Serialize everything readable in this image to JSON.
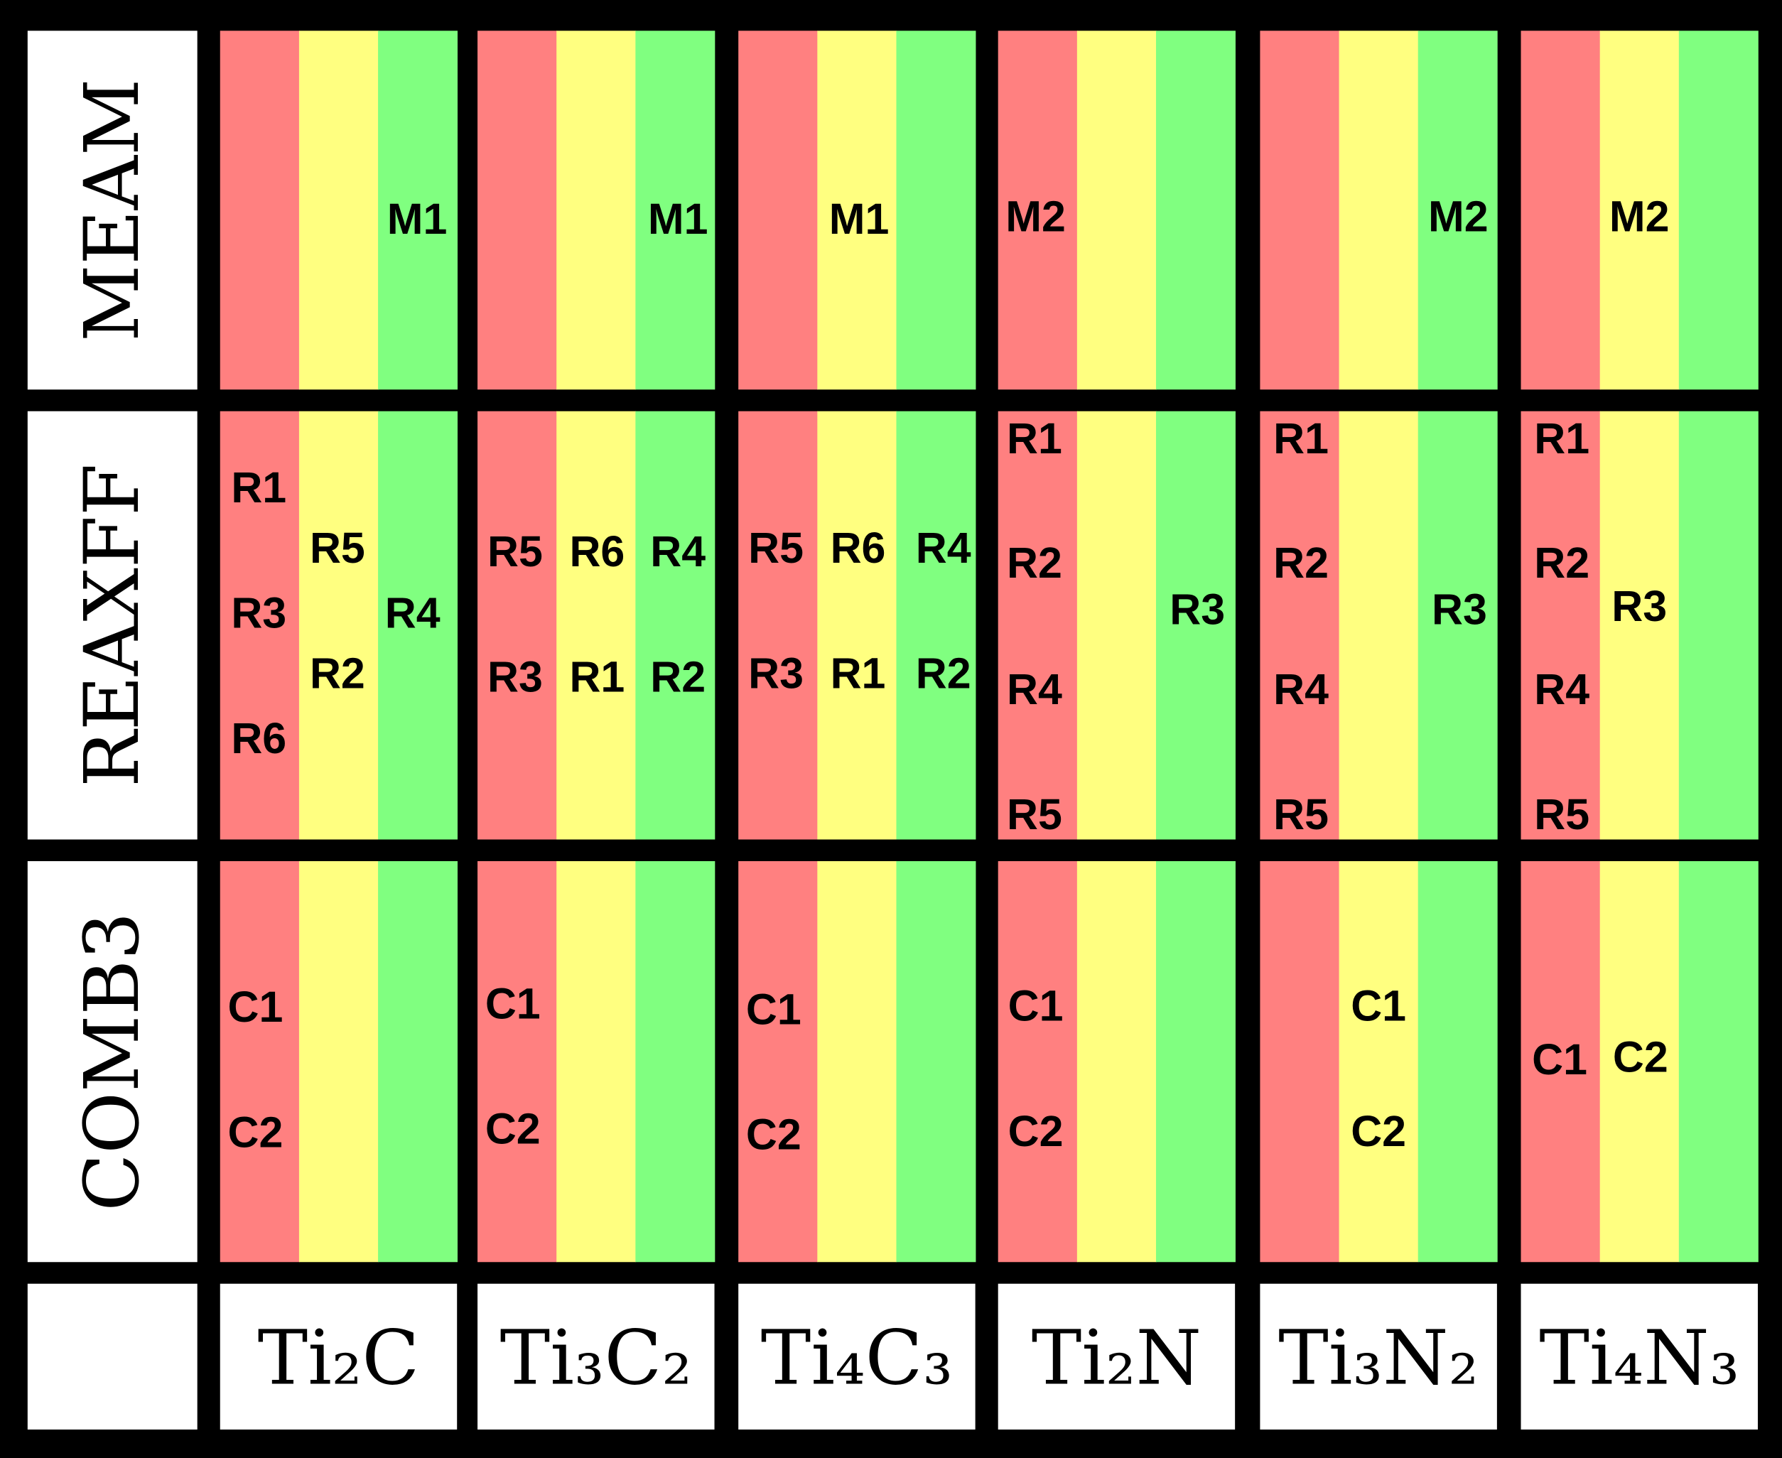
{
  "rows": [
    {
      "label": "MEAM",
      "cells": [
        [
          "M1"
        ],
        [
          "M1"
        ],
        [
          "M1"
        ],
        [
          "M2"
        ],
        [
          "M2"
        ],
        [
          "M2"
        ]
      ]
    },
    {
      "label": "REAXFF",
      "cells": [
        [
          "R1",
          "R5",
          "R3",
          "R4",
          "R2",
          "R6"
        ],
        [
          "R5",
          "R6",
          "R4",
          "R3",
          "R1",
          "R2"
        ],
        [
          "R5",
          "R6",
          "R4",
          "R3",
          "R1",
          "R2"
        ],
        [
          "R1",
          "R2",
          "R3",
          "R4",
          "R5"
        ],
        [
          "R1",
          "R2",
          "R3",
          "R4",
          "R5"
        ],
        [
          "R1",
          "R2",
          "R3",
          "R4",
          "R5"
        ]
      ]
    },
    {
      "label": "COMB3",
      "cells": [
        [
          "C1",
          "C2"
        ],
        [
          "C1",
          "C2"
        ],
        [
          "C1",
          "C2"
        ],
        [
          "C1",
          "C2"
        ],
        [
          "C1",
          "C2"
        ],
        [
          "C1",
          "C2"
        ]
      ]
    }
  ],
  "columns": [
    "Ti₂C",
    "Ti₃C₂",
    "Ti₄C₃",
    "Ti₂N",
    "Ti₃N₂",
    "Ti₄N₃"
  ]
}
